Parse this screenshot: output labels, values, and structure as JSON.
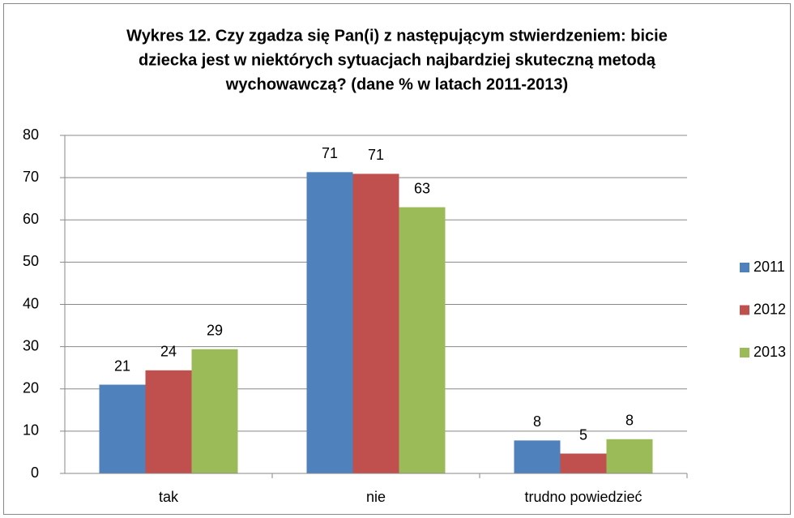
{
  "chart_data": {
    "type": "bar",
    "title": [
      "Wykres 12. Czy zgadza się Pan(i) z następującym stwierdzeniem: bicie",
      "dziecka jest w niektórych sytuacjach najbardziej skuteczną metodą",
      "wychowawczą? (dane % w latach 2011-2013)"
    ],
    "categories": [
      "tak",
      "nie",
      "trudno powiedzieć"
    ],
    "series": [
      {
        "name": "2011",
        "color": "#4f81bd",
        "values": [
          21,
          71.3,
          7.8
        ],
        "value_labels": [
          "21",
          "71",
          "8"
        ]
      },
      {
        "name": "2012",
        "color": "#c0504d",
        "values": [
          24.4,
          70.9,
          4.7
        ],
        "value_labels": [
          "24",
          "71",
          "5"
        ]
      },
      {
        "name": "2013",
        "color": "#9bbb59",
        "values": [
          29.4,
          63,
          8.1
        ],
        "value_labels": [
          "29",
          "63",
          "8"
        ]
      }
    ],
    "ylim": [
      0,
      80
    ],
    "yticks": [
      0,
      10,
      20,
      30,
      40,
      50,
      60,
      70,
      80
    ],
    "grid": true,
    "legend": "right"
  }
}
